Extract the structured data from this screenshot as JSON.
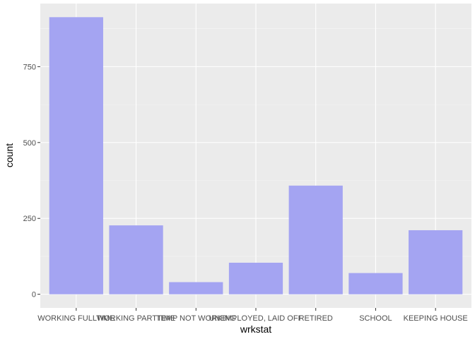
{
  "chart_data": {
    "type": "bar",
    "title": "",
    "xlabel": "wrkstat",
    "ylabel": "count",
    "categories": [
      "WORKING FULLTIME",
      "WORKING PARTTIME",
      "TEMP NOT WORKING",
      "UNEMPLOYED, LAID OFF",
      "RETIRED",
      "SCHOOL",
      "KEEPING HOUSE"
    ],
    "values": [
      913,
      227,
      40,
      104,
      358,
      70,
      211
    ],
    "yticks": [
      0,
      250,
      500,
      750
    ],
    "ylim": [
      -45,
      958
    ],
    "grid": true,
    "legend": "none",
    "colors": {
      "bar": "#a4a4f2",
      "panel": "#ebebeb",
      "grid_major": "#ffffff",
      "grid_minor": "#f5f5f5",
      "tick": "#333333"
    }
  }
}
